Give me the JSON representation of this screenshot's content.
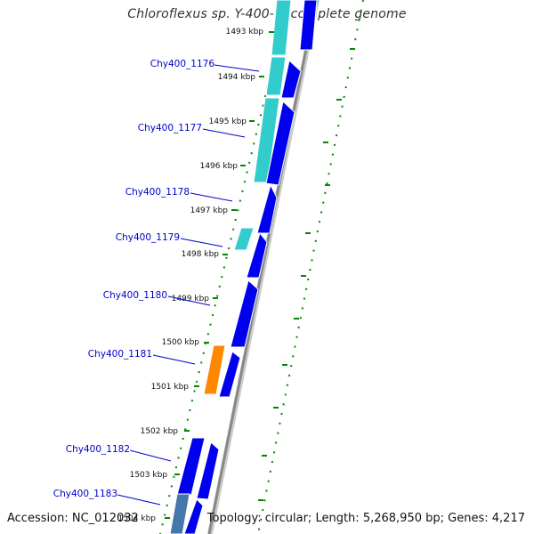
{
  "title": "Chloroflexus sp. Y-400-fl, complete genome",
  "footer": {
    "accession_label": "Accession:",
    "accession": "NC_012032",
    "topology_label": "Topology:",
    "topology": "circular",
    "length_label": "Length:",
    "length": "5,268,950 bp",
    "genes_label": "Genes:",
    "genes": "4,217"
  },
  "colors": {
    "gene_forward": "#0000ee",
    "gene_cyan": "#33cccc",
    "gene_orange": "#ff8800",
    "gene_steel": "#4477aa",
    "backbone": "#888888",
    "tick": "#008800",
    "label_link": "#0000cc"
  },
  "kbp_ticks": [
    "1493 kbp",
    "1494 kbp",
    "1495 kbp",
    "1496 kbp",
    "1497 kbp",
    "1498 kbp",
    "1499 kbp",
    "1500 kbp",
    "1501 kbp",
    "1502 kbp",
    "1503 kbp",
    "1504 kbp"
  ],
  "gene_labels": [
    "Chy400_1176",
    "Chy400_1177",
    "Chy400_1178",
    "Chy400_1179",
    "Chy400_1180",
    "Chy400_1181",
    "Chy400_1182",
    "Chy400_1183"
  ]
}
